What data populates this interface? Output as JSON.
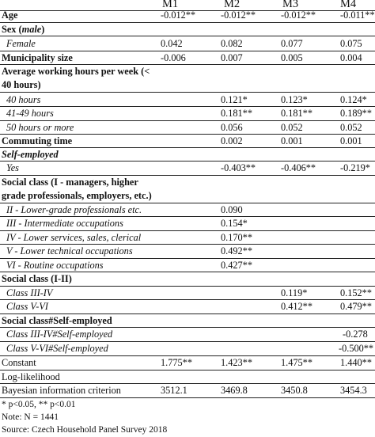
{
  "header": {
    "cols": [
      "M1",
      "M2",
      "M3",
      "M4"
    ]
  },
  "rows": [
    {
      "label": "Age",
      "style": "b",
      "vals": [
        "-0.012**",
        "-0.012**",
        "-0.012**",
        "-0.011**"
      ]
    },
    {
      "label_parts": [
        "Sex (",
        "male",
        ")"
      ],
      "style": "b-sex",
      "vals": [
        "",
        "",
        "",
        ""
      ]
    },
    {
      "label": "Female",
      "style": "ind",
      "vals": [
        "0.042",
        "0.082",
        "0.077",
        "0.075"
      ]
    },
    {
      "label": "Municipality size",
      "style": "b",
      "vals": [
        "-0.006",
        "0.007",
        "0.005",
        "0.004"
      ]
    },
    {
      "label": "Average working hours per week (< 40 hours)",
      "style": "b-wrap",
      "vals": [
        "",
        "",
        "",
        ""
      ]
    },
    {
      "label": "40 hours",
      "style": "ind",
      "vals": [
        "",
        "0.121*",
        "0.123*",
        "0.124*"
      ]
    },
    {
      "label": "41-49 hours",
      "style": "ind",
      "vals": [
        "",
        "0.181**",
        "0.181**",
        "0.189**"
      ]
    },
    {
      "label": "50 hours or more",
      "style": "ind",
      "vals": [
        "",
        "0.056",
        "0.052",
        "0.052"
      ]
    },
    {
      "label": "Commuting time",
      "style": "b",
      "vals": [
        "",
        "0.002",
        "0.001",
        "0.001"
      ]
    },
    {
      "label": "Self-employed",
      "style": "bi",
      "vals": [
        "",
        "",
        "",
        ""
      ]
    },
    {
      "label": "Yes",
      "style": "ind",
      "vals": [
        "",
        "-0.403**",
        "-0.406**",
        "-0.219*"
      ]
    },
    {
      "label": "Social class (I - managers, higher grade professionals, employers, etc.)",
      "style": "b-wrap2",
      "vals": [
        "",
        "",
        "",
        ""
      ]
    },
    {
      "label": "II - Lower-grade professionals etc.",
      "style": "ind",
      "vals": [
        "",
        "0.090",
        "",
        ""
      ]
    },
    {
      "label": "III - Intermediate occupations",
      "style": "ind",
      "vals": [
        "",
        "0.154*",
        "",
        ""
      ]
    },
    {
      "label": "IV - Lower services, sales, clerical",
      "style": "ind",
      "vals": [
        "",
        "0.170**",
        "",
        ""
      ]
    },
    {
      "label": "V - Lower technical occupations",
      "style": "ind",
      "vals": [
        "",
        "0.492**",
        "",
        ""
      ]
    },
    {
      "label": "VI - Routine occupations",
      "style": "ind",
      "vals": [
        "",
        "0.427**",
        "",
        ""
      ]
    },
    {
      "label": "Social class (I-II)",
      "style": "b-sc",
      "vals": [
        "",
        "",
        "",
        ""
      ]
    },
    {
      "label": "Class III-IV",
      "style": "ind",
      "vals": [
        "",
        "",
        "0.119*",
        "0.152**"
      ]
    },
    {
      "label": "Class V-VI",
      "style": "ind",
      "vals": [
        "",
        "",
        "0.412**",
        "0.479**"
      ]
    },
    {
      "label": "Social class#Self-employed",
      "style": "b",
      "vals": [
        "",
        "",
        "",
        ""
      ]
    },
    {
      "label": "Class III-IV#Self-employed",
      "style": "ind",
      "vals": [
        "",
        "",
        "",
        "-0.278"
      ]
    },
    {
      "label": "Class V-VI#Self-employed",
      "style": "ind",
      "vals": [
        "",
        "",
        "",
        "-0.500**"
      ]
    },
    {
      "label": "Constant",
      "style": "plain",
      "vals": [
        "1.775**",
        "1.423**",
        "1.475**",
        "1.440**"
      ]
    },
    {
      "label": "Log-likelihood",
      "style": "plain",
      "vals": [
        "",
        "",
        "",
        ""
      ]
    },
    {
      "label": "Bayesian information criterion",
      "style": "plain",
      "vals": [
        "3512.1",
        "3469.8",
        "3450.8",
        "3454.3"
      ]
    }
  ],
  "notes": [
    "* p<0.05, ** p<0.01",
    "Note: N = 1441",
    "Source: Czech Household Panel Survey 2018"
  ]
}
